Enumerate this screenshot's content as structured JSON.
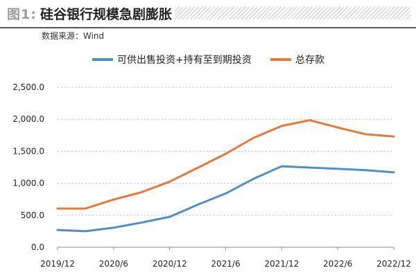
{
  "header": {
    "figure_label": "图1:",
    "title": "硅谷银行规模急剧膨胀",
    "source": "数据来源：Wind"
  },
  "colors": {
    "series_blue": "#4e8fca",
    "series_orange": "#e8773a",
    "axis": "#888888"
  },
  "chart_data": {
    "type": "line",
    "title": "硅谷银行规模急剧膨胀",
    "xlabel": "",
    "ylabel": "",
    "ylim": [
      0,
      2500
    ],
    "y_ticks": [
      "0.0",
      "500.0",
      "1,000.0",
      "1,500.0",
      "2,000.0",
      "2,500.0"
    ],
    "x_ticks": [
      "2019/12",
      "2020/6",
      "2020/12",
      "2021/6",
      "2021/12",
      "2022/6",
      "2022/12"
    ],
    "x": [
      "2019/12",
      "2020/3",
      "2020/6",
      "2020/9",
      "2020/12",
      "2021/3",
      "2021/6",
      "2021/9",
      "2021/12",
      "2022/3",
      "2022/6",
      "2022/9",
      "2022/12"
    ],
    "grid": "horizontal dashed",
    "legend": "top",
    "series": [
      {
        "name": "可供出售投资+持有至到期投资",
        "color": "#4e8fca",
        "values": [
          270,
          250,
          305,
          385,
          475,
          665,
          840,
          1070,
          1265,
          1245,
          1225,
          1205,
          1170
        ]
      },
      {
        "name": "总存款",
        "color": "#e8773a",
        "values": [
          605,
          605,
          745,
          860,
          1025,
          1240,
          1460,
          1710,
          1895,
          1985,
          1870,
          1765,
          1730
        ]
      }
    ]
  }
}
